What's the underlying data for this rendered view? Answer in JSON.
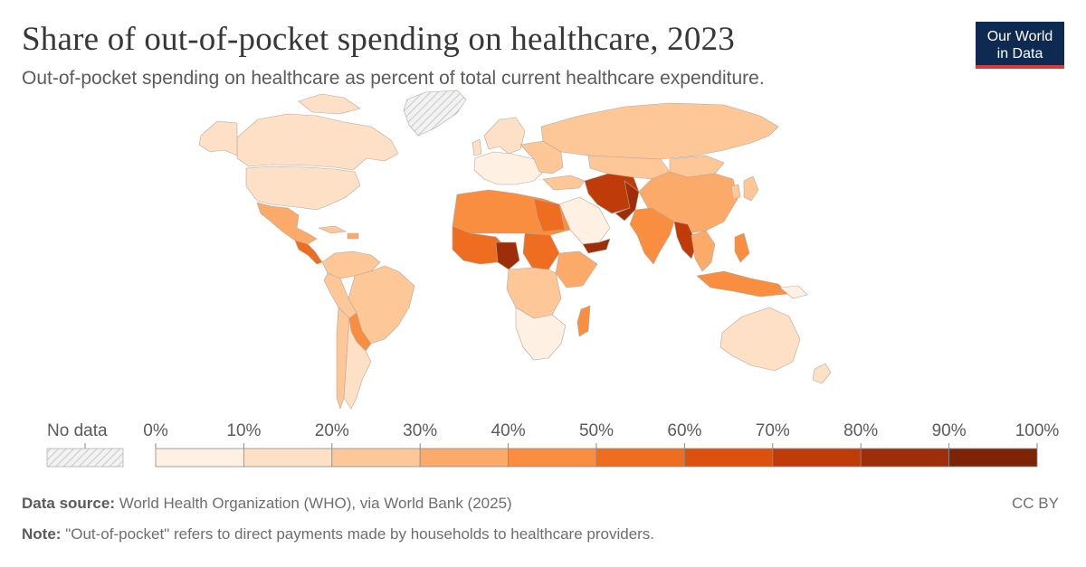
{
  "header": {
    "title": "Share of out-of-pocket spending on healthcare, 2023",
    "subtitle": "Out-of-pocket spending on healthcare as percent of total current healthcare expenditure."
  },
  "logo": {
    "line1": "Our World",
    "line2": "in Data"
  },
  "legend": {
    "no_data_label": "No data",
    "ticks": [
      "0%",
      "10%",
      "20%",
      "30%",
      "40%",
      "50%",
      "60%",
      "70%",
      "80%",
      "90%",
      "100%"
    ],
    "bin_colors": [
      "#fef0e3",
      "#fde0c6",
      "#fdc797",
      "#fcaa6a",
      "#f98d40",
      "#ef6d20",
      "#dd510e",
      "#bf3c0a",
      "#9d2e09",
      "#7d2306"
    ],
    "no_data_color": "#e9e9e9"
  },
  "footer": {
    "source_label": "Data source:",
    "source_text": "World Health Organization (WHO), via World Bank (2025)",
    "note_label": "Note:",
    "note_text": "\"Out-of-pocket\" refers to direct payments made by households to healthcare providers.",
    "license": "CC BY"
  }
}
